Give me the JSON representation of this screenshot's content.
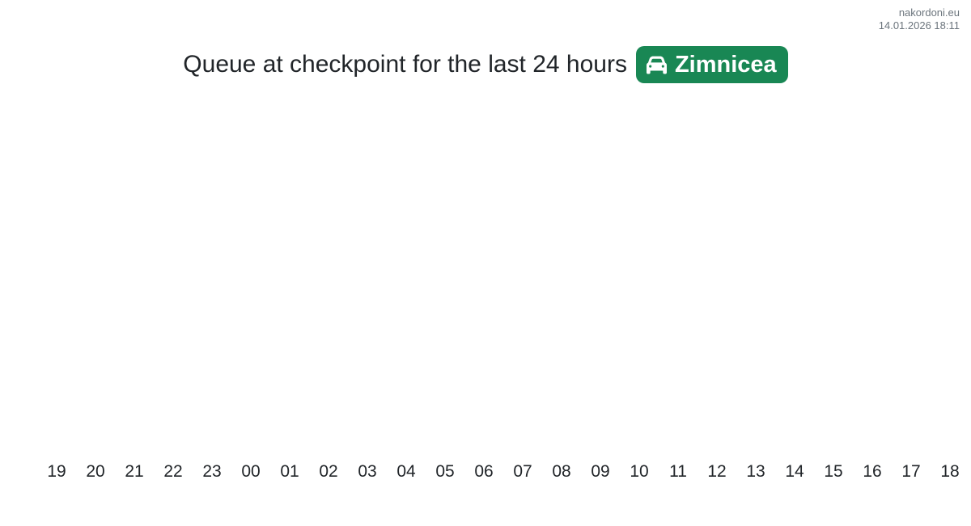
{
  "meta": {
    "site": "nakordoni.eu",
    "timestamp": "14.01.2026 18:11"
  },
  "header": {
    "title": "Queue at checkpoint for the last 24 hours"
  },
  "checkpoint": {
    "name": "Zimnicea",
    "badge_color": "#198754",
    "icon": "car-icon"
  },
  "colors": {
    "accent_green": "#198754",
    "title_text": "#212529",
    "tick_text": "#212529",
    "meta_text": "#6c757d",
    "background": "#ffffff"
  },
  "chart_data": {
    "type": "bar",
    "categories": [
      "19",
      "20",
      "21",
      "22",
      "23",
      "00",
      "01",
      "02",
      "03",
      "04",
      "05",
      "06",
      "07",
      "08",
      "09",
      "10",
      "11",
      "12",
      "13",
      "14",
      "15",
      "16",
      "17",
      "18"
    ],
    "values": [
      0,
      0,
      0,
      0,
      0,
      0,
      0,
      0,
      0,
      0,
      0,
      0,
      0,
      0,
      0,
      0,
      0,
      0,
      0,
      0,
      0,
      0,
      0,
      0
    ],
    "title": "Queue at checkpoint for the last 24 hours",
    "xlabel": "",
    "ylabel": "",
    "ylim": [
      0,
      1
    ],
    "grid": false,
    "legend": "none",
    "note": "Plot area renders empty: queue value is zero for every hour shown"
  }
}
